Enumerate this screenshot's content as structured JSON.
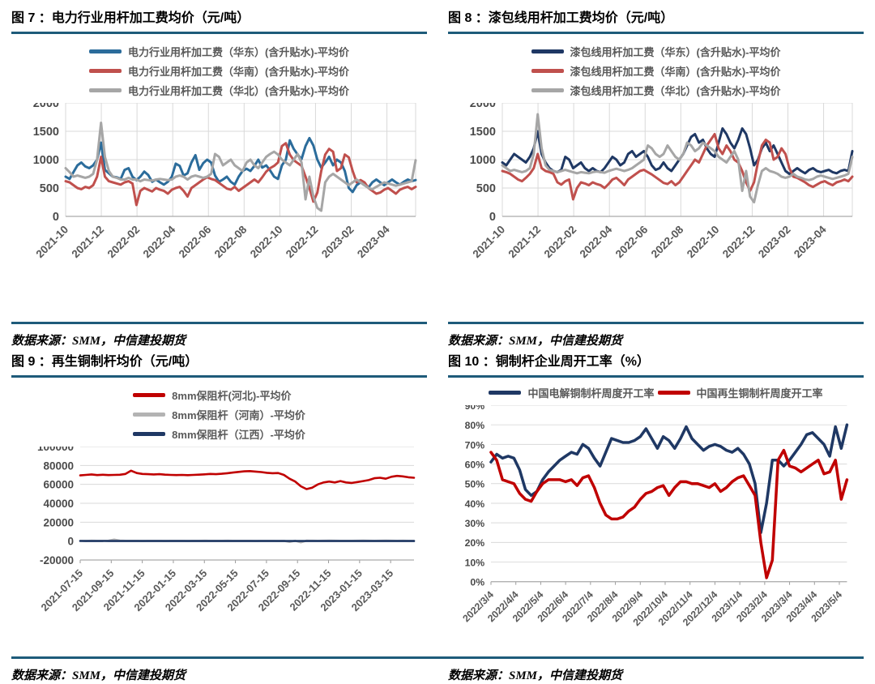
{
  "page": {
    "rule_color": "#1E5B7A",
    "source_label": "数据来源：SMM，中信建投期货"
  },
  "chart_data": [
    {
      "type": "line",
      "title": "图 7 ：电力行业用杆加工费均价（元/吨）",
      "source": "数据来源：SMM，中信建投期货",
      "legend_position": "top",
      "grid": "both",
      "v_grid": true,
      "ylim": [
        0,
        2000
      ],
      "y_ticks": [
        0,
        500,
        1000,
        1500,
        2000
      ],
      "y_tick_labels": [
        "0",
        "500",
        "1000",
        "1500",
        "2000"
      ],
      "x_ticks": [
        "2021-10",
        "2021-12",
        "2022-02",
        "2022-04",
        "2022-06",
        "2022-08",
        "2022-10",
        "2022-12",
        "2023-02",
        "2023-04"
      ],
      "x_tick_step_frac": 0.102,
      "series": [
        {
          "name": "电力行业用杆加工费（华东）(含升贴水)-平均价",
          "color": "#2B6C9B",
          "values": [
            700,
            660,
            780,
            900,
            950,
            880,
            850,
            900,
            1000,
            1300,
            820,
            760,
            700,
            690,
            660,
            820,
            850,
            700,
            640,
            700,
            790,
            730,
            610,
            650,
            600,
            560,
            610,
            700,
            930,
            890,
            720,
            760,
            950,
            1080,
            820,
            940,
            1000,
            950,
            720,
            610,
            650,
            700,
            610,
            560,
            700,
            800,
            840,
            800,
            890,
            1000,
            860,
            900,
            810,
            700,
            660,
            900,
            1000,
            1340,
            1190,
            1090,
            1010,
            1240,
            1380,
            1250,
            1000,
            860,
            950,
            1050,
            900,
            1000,
            950,
            800,
            500,
            430,
            550,
            600,
            550,
            510,
            600,
            650,
            600,
            550,
            600,
            650,
            600,
            560,
            610,
            650,
            620,
            640
          ]
        },
        {
          "name": "电力行业用杆加工费（华南）(含升贴水)-平均价",
          "color": "#C0504D",
          "values": [
            620,
            600,
            550,
            500,
            480,
            520,
            500,
            550,
            700,
            1050,
            700,
            620,
            600,
            580,
            560,
            600,
            620,
            580,
            200,
            450,
            500,
            470,
            440,
            500,
            470,
            450,
            400,
            470,
            500,
            520,
            450,
            350,
            500,
            550,
            600,
            650,
            690,
            660,
            640,
            590,
            540,
            490,
            470,
            520,
            450,
            500,
            550,
            600,
            650,
            600,
            690,
            790,
            850,
            890,
            950,
            1240,
            1290,
            1090,
            990,
            940,
            890,
            700,
            500,
            260,
            420,
            800,
            1090,
            1190,
            1140,
            800,
            850,
            1090,
            1040,
            800,
            600,
            640,
            600,
            500,
            450,
            400,
            420,
            470,
            500,
            450,
            400,
            470,
            500,
            520,
            480,
            520
          ]
        },
        {
          "name": "电力行业用杆加工费（华北）(含升贴水)-平均价",
          "color": "#A6A6A6",
          "values": [
            850,
            780,
            700,
            720,
            700,
            680,
            700,
            750,
            1000,
            1650,
            1050,
            800,
            700,
            680,
            650,
            650,
            680,
            650,
            650,
            620,
            650,
            640,
            630,
            650,
            660,
            650,
            640,
            650,
            700,
            720,
            700,
            650,
            700,
            720,
            700,
            680,
            700,
            750,
            1100,
            1050,
            900,
            950,
            1000,
            900,
            850,
            800,
            950,
            1000,
            900,
            850,
            950,
            1050,
            1100,
            1140,
            1090,
            1000,
            950,
            900,
            1000,
            1100,
            950,
            300,
            700,
            350,
            150,
            100,
            600,
            700,
            750,
            700,
            650,
            600,
            550,
            600,
            650,
            600,
            550,
            500,
            480,
            520,
            560,
            600,
            580,
            560,
            540,
            560,
            580,
            600,
            620,
            990
          ]
        }
      ]
    },
    {
      "type": "line",
      "title": "图 8 ：漆包线用杆加工费均价（元/吨）",
      "source": "数据来源：SMM，中信建投期货",
      "legend_position": "top",
      "grid": "both",
      "v_grid": true,
      "ylim": [
        0,
        2000
      ],
      "y_ticks": [
        0,
        500,
        1000,
        1500,
        2000
      ],
      "y_tick_labels": [
        "0",
        "500",
        "1000",
        "1500",
        "2000"
      ],
      "x_ticks": [
        "2021-10",
        "2021-12",
        "2022-02",
        "2022-04",
        "2022-06",
        "2022-08",
        "2022-10",
        "2022-12",
        "2023-02",
        "2023-04"
      ],
      "x_tick_step_frac": 0.102,
      "series": [
        {
          "name": "漆包线用杆加工费（华东）(含升贴水)-平均价",
          "color": "#1F3864",
          "values": [
            950,
            900,
            1000,
            1100,
            1050,
            1000,
            950,
            1050,
            1200,
            1500,
            1100,
            950,
            850,
            800,
            780,
            820,
            1050,
            1000,
            850,
            900,
            950,
            850,
            800,
            850,
            800,
            780,
            850,
            950,
            1050,
            1000,
            900,
            950,
            1100,
            1150,
            1050,
            1100,
            1150,
            1050,
            900,
            820,
            850,
            950,
            850,
            800,
            900,
            1000,
            1100,
            1250,
            1400,
            1450,
            1300,
            1350,
            1200,
            1100,
            1050,
            1300,
            1550,
            1450,
            1300,
            1200,
            1350,
            1550,
            1450,
            1200,
            900,
            1000,
            1200,
            1300,
            1150,
            1250,
            1100,
            950,
            800,
            750,
            800,
            850,
            800,
            760,
            820,
            850,
            800,
            780,
            800,
            820,
            780,
            760,
            800,
            820,
            800,
            1150
          ]
        },
        {
          "name": "漆包线用杆加工费（华南）(含升贴水)-平均价",
          "color": "#C0504D",
          "values": [
            800,
            780,
            750,
            700,
            650,
            620,
            680,
            750,
            850,
            1100,
            850,
            800,
            780,
            750,
            600,
            560,
            620,
            650,
            300,
            500,
            600,
            580,
            550,
            600,
            570,
            550,
            500,
            570,
            650,
            680,
            620,
            550,
            650,
            700,
            750,
            800,
            820,
            780,
            740,
            690,
            640,
            590,
            570,
            620,
            550,
            600,
            700,
            800,
            900,
            1000,
            950,
            1100,
            1250,
            1350,
            1450,
            1200,
            1100,
            1250,
            1150,
            1000,
            950,
            800,
            600,
            450,
            600,
            950,
            1250,
            1350,
            1300,
            1000,
            1050,
            1200,
            1100,
            850,
            700,
            680,
            640,
            600,
            550,
            520,
            560,
            600,
            620,
            580,
            550,
            600,
            620,
            650,
            620,
            700
          ]
        },
        {
          "name": "漆包线用杆加工费（华北）(含升贴水)-平均价",
          "color": "#A6A6A6",
          "values": [
            900,
            850,
            800,
            820,
            800,
            780,
            800,
            850,
            1100,
            1800,
            1200,
            900,
            820,
            800,
            780,
            800,
            820,
            800,
            780,
            760,
            780,
            770,
            760,
            780,
            790,
            780,
            770,
            800,
            820,
            840,
            820,
            800,
            820,
            850,
            900,
            950,
            1000,
            1250,
            1200,
            1100,
            1050,
            1100,
            1250,
            1150,
            1050,
            1000,
            1100,
            1300,
            1250,
            1150,
            1200,
            1300,
            1250,
            1200,
            1150,
            1050,
            1000,
            950,
            1050,
            1150,
            1000,
            450,
            800,
            350,
            250,
            550,
            800,
            850,
            800,
            780,
            750,
            700,
            680,
            700,
            750,
            700,
            680,
            650,
            640,
            660,
            700,
            720,
            700,
            680,
            660,
            680,
            700,
            720,
            750,
            1050
          ]
        }
      ]
    },
    {
      "type": "line",
      "title": "图 9 ：再生铜制杆均价（元/吨）",
      "source": "数据来源：SMM，中信建投期货",
      "legend_position": "top",
      "grid": "horizontal",
      "v_grid": false,
      "ylim": [
        -20000,
        100000
      ],
      "y_ticks": [
        -20000,
        0,
        20000,
        40000,
        60000,
        80000,
        100000
      ],
      "y_tick_labels": [
        "-20000",
        "0",
        "20000",
        "40000",
        "60000",
        "80000",
        "100000"
      ],
      "x_ticks": [
        "2021-07-15",
        "2021-09-15",
        "2021-11-15",
        "2022-01-15",
        "2022-03-15",
        "2022-05-15",
        "2022-07-15",
        "2022-09-15",
        "2022-11-15",
        "2023-01-15",
        "2023-03-15"
      ],
      "x_tick_step_frac": 0.093,
      "series": [
        {
          "name": "8mm保阻杆(河北)-平均价",
          "color": "#C00000",
          "values": [
            69500,
            70000,
            70500,
            69800,
            70200,
            69800,
            70000,
            70200,
            71000,
            74500,
            72000,
            71000,
            70800,
            70500,
            70800,
            70300,
            70000,
            69800,
            70000,
            69700,
            70000,
            70300,
            70600,
            71000,
            70800,
            71200,
            71800,
            72500,
            73200,
            73800,
            74000,
            73500,
            73000,
            72200,
            71800,
            72000,
            70000,
            66000,
            63000,
            58000,
            55000,
            56500,
            60000,
            62000,
            63000,
            62000,
            63500,
            62000,
            61500,
            62500,
            63500,
            64500,
            66500,
            67000,
            66000,
            68000,
            69000,
            68500,
            67500,
            67000
          ]
        },
        {
          "name": "8mm保阻杆（河南）-平均价",
          "color": "#B3B3B3",
          "values": [
            300,
            200,
            400,
            300,
            350,
            400,
            1600,
            600,
            300,
            350,
            300,
            250,
            300,
            350,
            300,
            250,
            300,
            350,
            300,
            250,
            300,
            350,
            400,
            350,
            300,
            350,
            400,
            350,
            300,
            350,
            300,
            250,
            300,
            350,
            300,
            250,
            300,
            -900,
            400,
            -1300,
            500,
            400,
            350,
            400,
            450,
            400,
            350,
            300,
            350,
            400,
            450,
            400,
            350,
            400,
            450,
            400,
            350,
            400,
            350,
            300
          ]
        },
        {
          "name": "8mm保阻杆（江西）-平均价",
          "color": "#1F3864",
          "values": [
            100,
            50,
            120,
            80,
            100,
            60,
            110,
            90,
            100,
            70,
            100,
            80,
            110,
            90,
            100,
            60,
            100,
            80,
            110,
            90,
            100,
            70,
            100,
            80,
            110,
            90,
            100,
            60,
            100,
            80,
            110,
            90,
            100,
            70,
            100,
            80,
            110,
            90,
            100,
            60,
            100,
            80,
            110,
            90,
            100,
            70,
            100,
            80,
            110,
            90,
            100,
            60,
            100,
            80,
            110,
            90,
            100,
            70,
            100,
            80
          ]
        }
      ]
    },
    {
      "type": "line",
      "title": "图 10  ：铜制杆企业周开工率（%）",
      "source": "数据来源：SMM，中信建投期货",
      "legend_position": "top",
      "grid": "horizontal",
      "v_grid": false,
      "ylim": [
        0,
        90
      ],
      "y_ticks": [
        0,
        10,
        20,
        30,
        40,
        50,
        60,
        70,
        80,
        90
      ],
      "y_tick_labels": [
        "0%",
        "10%",
        "20%",
        "30%",
        "40%",
        "50%",
        "60%",
        "70%",
        "80%",
        "90%"
      ],
      "x_ticks": [
        "2022/3/4",
        "2022/4/4",
        "2022/5/4",
        "2022/6/4",
        "2022/7/4",
        "2022/8/4",
        "2022/9/4",
        "2022/10/4",
        "2022/11/4",
        "2022/12/4",
        "2023/1/4",
        "2023/2/4",
        "2023/3/4",
        "2023/4/4",
        "2023/5/4"
      ],
      "x_tick_step_frac": 0.0699,
      "series": [
        {
          "name": "中国电解铜制杆周度开工率",
          "color": "#1F3864",
          "values": [
            61,
            65,
            63,
            64,
            63,
            57,
            47,
            44,
            46,
            52,
            56,
            59,
            62,
            64,
            66,
            65,
            70,
            68,
            63,
            59,
            66,
            73,
            72,
            71,
            71,
            72,
            74,
            78,
            73,
            68,
            74,
            72,
            68,
            73,
            79,
            73,
            70,
            67,
            69,
            70,
            69,
            67,
            66,
            68,
            65,
            60,
            50,
            25,
            40,
            62,
            62,
            59,
            62,
            66,
            70,
            75,
            76,
            73,
            70,
            64,
            79,
            68,
            80
          ]
        },
        {
          "name": "中国再生铜制杆周度开工率",
          "color": "#C00000",
          "values": [
            66,
            62,
            52,
            51,
            50,
            45,
            42,
            41,
            46,
            50,
            52,
            52,
            52,
            51,
            52,
            49,
            53,
            54,
            48,
            40,
            34,
            32,
            32,
            33,
            36,
            38,
            42,
            45,
            46,
            48,
            49,
            44,
            48,
            51,
            51,
            50,
            50,
            49,
            48,
            50,
            46,
            48,
            51,
            53,
            54,
            49,
            44,
            20,
            2,
            11,
            62,
            67,
            59,
            58,
            56,
            58,
            60,
            62,
            55,
            56,
            62,
            42,
            52
          ]
        }
      ]
    }
  ]
}
